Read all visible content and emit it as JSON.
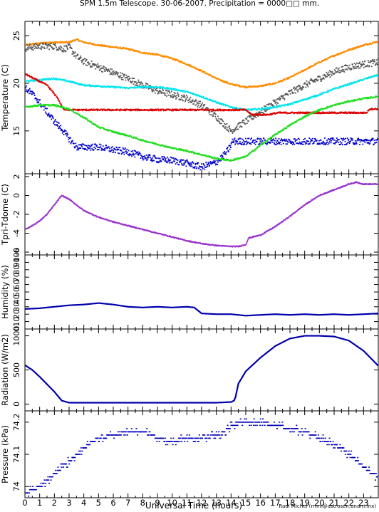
{
  "title": "SPM 1.5m Telescope. 30-06-2007. Precipitation = 0000□□ mm.",
  "xlabel": "Universal Time (hours)",
  "credit": "Raul Michel (rmm@astrosen.unam.mx)",
  "x_ticks": [
    "0",
    "1",
    "2",
    "3",
    "4",
    "5",
    "6",
    "7",
    "8",
    "9",
    "10",
    "11",
    "12",
    "13",
    "14",
    "15",
    "16",
    "17",
    "18",
    "19",
    "20",
    "21",
    "22",
    "23"
  ],
  "chart_data": [
    {
      "type": "scatter",
      "ylabel": "Temperature (C)",
      "xlim": [
        0,
        24
      ],
      "ylim": [
        10.5,
        26.5
      ],
      "yticks": [
        15,
        20,
        25
      ],
      "series": [
        {
          "color": "#ff8c00",
          "x": [
            0,
            1,
            2,
            3,
            3.5,
            4,
            5,
            6,
            7,
            8,
            9,
            10,
            11,
            12,
            13,
            14,
            15,
            16,
            17,
            18,
            19,
            20,
            21,
            22,
            23,
            24
          ],
          "values": [
            24.0,
            24.2,
            24.3,
            24.3,
            24.6,
            24.3,
            24.0,
            23.8,
            23.6,
            23.2,
            23.0,
            22.6,
            22.0,
            21.3,
            20.5,
            19.9,
            19.6,
            19.7,
            20.0,
            20.6,
            21.4,
            22.2,
            22.9,
            23.5,
            24.0,
            24.4
          ]
        },
        {
          "color": "#555555",
          "x": [
            0,
            1,
            2,
            2.6,
            3,
            3.5,
            4,
            5,
            6,
            7,
            8,
            9,
            10,
            11,
            12,
            13,
            14,
            15,
            16,
            17,
            18,
            19,
            20,
            21,
            22,
            23,
            24
          ],
          "values": [
            23.7,
            23.9,
            23.9,
            23.6,
            23.8,
            22.8,
            22.3,
            21.7,
            21.1,
            20.5,
            19.8,
            19.2,
            18.8,
            18.4,
            17.7,
            16.5,
            15.0,
            16.0,
            17.0,
            18.0,
            19.0,
            19.8,
            20.5,
            21.2,
            21.7,
            22.0,
            22.2
          ]
        },
        {
          "color": "#00e5ee",
          "x": [
            0,
            2,
            3,
            4,
            5,
            6,
            7,
            8,
            9,
            10,
            11,
            12,
            13,
            14,
            15,
            16,
            17,
            18,
            19,
            20,
            21,
            22,
            23,
            24
          ],
          "values": [
            20.2,
            20.5,
            20.2,
            19.8,
            19.7,
            19.6,
            19.5,
            19.6,
            19.6,
            19.4,
            19.1,
            18.6,
            18.0,
            17.5,
            17.2,
            17.3,
            17.5,
            17.8,
            18.3,
            18.8,
            19.4,
            19.9,
            20.4,
            20.9
          ]
        },
        {
          "color": "#dd0000",
          "x": [
            0,
            0.6,
            1.5,
            2.2,
            2.6,
            3.0,
            14.0,
            15.0,
            15.4,
            16.5,
            17.2,
            18,
            20,
            22,
            23.2,
            23.4,
            24
          ],
          "values": [
            21.0,
            20.5,
            19.8,
            18.5,
            17.3,
            17.2,
            17.2,
            17.2,
            16.7,
            16.7,
            16.9,
            16.9,
            16.9,
            16.9,
            16.9,
            17.3,
            17.3
          ]
        },
        {
          "color": "#0000cc",
          "x": [
            0,
            0.5,
            1,
            1.5,
            2,
            2.5,
            3,
            3.5,
            4,
            5,
            6,
            7,
            8,
            9,
            10,
            11,
            12,
            13,
            13.5,
            13.8,
            14.0,
            14.1,
            14.5,
            16,
            18,
            20,
            22,
            24
          ],
          "values": [
            19.5,
            18.9,
            18.0,
            17.0,
            16.0,
            15.2,
            14.2,
            13.3,
            13.3,
            13.3,
            13.0,
            12.8,
            12.3,
            12.0,
            11.9,
            11.6,
            11.2,
            11.7,
            12.4,
            13.0,
            13.5,
            13.9,
            13.9,
            13.9,
            13.9,
            13.9,
            13.9,
            13.9
          ]
        },
        {
          "color": "#22dd22",
          "x": [
            0,
            1,
            2,
            3,
            4,
            5,
            6,
            7,
            8,
            9,
            10,
            11,
            12,
            13,
            14,
            15,
            16,
            17,
            18,
            19,
            20,
            21,
            22,
            23,
            24
          ],
          "values": [
            17.5,
            17.7,
            17.7,
            17.3,
            16.4,
            15.4,
            14.9,
            14.5,
            14.0,
            13.6,
            13.2,
            12.9,
            12.5,
            12.1,
            11.9,
            12.3,
            13.5,
            14.6,
            15.6,
            16.5,
            17.2,
            17.7,
            18.1,
            18.4,
            18.6
          ]
        }
      ]
    },
    {
      "type": "scatter",
      "ylabel": "Tpri-Tdome (C)",
      "xlim": [
        0,
        24
      ],
      "ylim": [
        -6.3,
        2.3
      ],
      "yticks": [
        -6,
        -4,
        -2,
        0,
        2
      ],
      "series": [
        {
          "color": "#9932cc",
          "x": [
            0,
            0.5,
            1,
            1.5,
            2,
            2.5,
            3,
            4,
            5,
            6,
            7,
            8,
            9,
            10,
            11,
            12,
            13,
            14,
            14.5,
            15,
            15.2,
            16,
            17,
            18,
            19,
            20,
            21,
            22,
            22.5,
            23,
            24
          ],
          "values": [
            -3.6,
            -3.2,
            -2.7,
            -2.0,
            -1.0,
            0.0,
            -0.4,
            -1.6,
            -2.3,
            -2.8,
            -3.2,
            -3.6,
            -4.0,
            -4.4,
            -4.8,
            -5.1,
            -5.3,
            -5.4,
            -5.4,
            -5.2,
            -4.5,
            -4.2,
            -3.3,
            -2.2,
            -1.0,
            0.0,
            0.6,
            1.2,
            1.4,
            1.2,
            1.2
          ]
        }
      ]
    },
    {
      "type": "line",
      "ylabel": "Humidity (%)",
      "xlim": [
        0,
        24
      ],
      "ylim": [
        0,
        100
      ],
      "yticks": [
        0,
        10,
        20,
        30,
        40,
        50,
        60,
        70,
        80,
        90,
        100
      ],
      "series": [
        {
          "color": "#0000aa",
          "x": [
            0,
            1,
            2,
            3,
            4,
            5,
            6,
            7,
            8,
            9,
            10,
            11,
            11.5,
            12,
            13,
            14,
            15,
            16,
            17,
            18,
            19,
            20,
            21,
            22,
            23,
            24
          ],
          "values": [
            27,
            28,
            30,
            32,
            33,
            35,
            33,
            30,
            29,
            30,
            29,
            30,
            29,
            21,
            20,
            20,
            18,
            19,
            20,
            19,
            20,
            19,
            20,
            19,
            20,
            21
          ]
        }
      ]
    },
    {
      "type": "line",
      "ylabel": "Radiation (W/m2)",
      "xlim": [
        0,
        24
      ],
      "ylim": [
        -100,
        1100
      ],
      "yticks": [
        0,
        500,
        1000
      ],
      "series": [
        {
          "color": "#0000aa",
          "x": [
            0,
            0.5,
            1,
            2,
            2.5,
            3,
            13,
            14.0,
            14.2,
            14.3,
            14.5,
            15,
            16,
            17,
            18,
            19,
            20,
            21,
            22,
            23,
            24
          ],
          "values": [
            570,
            500,
            400,
            180,
            50,
            20,
            20,
            30,
            50,
            100,
            300,
            480,
            680,
            850,
            960,
            1000,
            1000,
            990,
            930,
            780,
            560
          ]
        }
      ]
    },
    {
      "type": "scatter",
      "ylabel": "Pressure (kPa)",
      "xlim": [
        0,
        24
      ],
      "ylim": [
        73.965,
        74.235
      ],
      "yticks": [
        74.0,
        74.1,
        74.2
      ],
      "series": [
        {
          "color": "#0000bb",
          "x": [
            0,
            0.5,
            1,
            1.5,
            2,
            2.5,
            3,
            3.5,
            4,
            4.5,
            5,
            6,
            7,
            8,
            9,
            10,
            11,
            12,
            13,
            13.5,
            14,
            14.5,
            15,
            16,
            17,
            18,
            19,
            20,
            20.5,
            21,
            22,
            22.5,
            23,
            23.5,
            24
          ],
          "values": [
            73.98,
            73.99,
            74.0,
            74.02,
            74.04,
            74.06,
            74.08,
            74.1,
            74.12,
            74.14,
            74.15,
            74.16,
            74.17,
            74.17,
            74.15,
            74.14,
            74.15,
            74.15,
            74.16,
            74.17,
            74.19,
            74.2,
            74.2,
            74.2,
            74.19,
            74.18,
            74.17,
            74.15,
            74.14,
            74.13,
            74.1,
            74.08,
            74.06,
            74.04,
            74.03
          ]
        }
      ]
    }
  ]
}
